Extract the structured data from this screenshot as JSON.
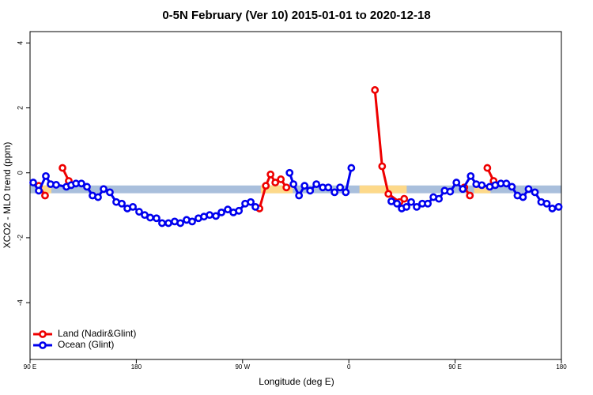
{
  "chart_data": {
    "type": "line",
    "title": "0-5N February (Ver 10)   2015-01-01 to 2020-12-18",
    "xlabel": "Longitude (deg E)",
    "ylabel": "XCO2 - MLO trend (ppm)",
    "xlim": [
      90,
      540
    ],
    "ylim": [
      -5.75,
      4.35
    ],
    "xticks": [
      {
        "value": 90,
        "label": "90 E"
      },
      180,
      {
        "value": 270,
        "label": "90 W"
      },
      {
        "value": 360,
        "label": "0"
      },
      {
        "value": 450,
        "label": "90 E"
      },
      {
        "value": 540,
        "label": "180"
      }
    ],
    "yticks": [
      -4,
      -2,
      0,
      2,
      4
    ],
    "legend": "bottom-left",
    "surface_band": {
      "ylim": [
        -0.63,
        -0.39
      ],
      "ocean_color": "#a9bfdc",
      "land_color": "#fdd98a",
      "land_ranges": [
        [
          94.7,
          108
        ],
        [
          285.5,
          312.5
        ],
        [
          369,
          409
        ],
        [
          466,
          480
        ]
      ]
    },
    "series": [
      {
        "name": "Land (Nadir&Glint)",
        "color": "#ee0000",
        "x": [
          97.4,
          102.7,
          null,
          117.5,
          122.8,
          null,
          284.3,
          289.7,
          293.7,
          297.7,
          302.4,
          307.1,
          null,
          382.1,
          388.2,
          393.5,
          402.9,
          406.9,
          null,
          457.8,
          462.5,
          null,
          477.3,
          482.6
        ],
        "values": [
          -0.4,
          -0.7,
          null,
          0.15,
          -0.25,
          null,
          -1.1,
          -0.4,
          -0.05,
          -0.3,
          -0.2,
          -0.45,
          null,
          2.55,
          0.2,
          -0.65,
          -0.9,
          -0.8,
          null,
          -0.45,
          -0.7,
          null,
          0.15,
          -0.25
        ]
      },
      {
        "name": "Ocean (Glint)",
        "color": "#0000ee",
        "x": [
          92.7,
          97.4,
          103.4,
          107.4,
          112.1,
          120.8,
          124.8,
          128.9,
          133.5,
          138.2,
          142.9,
          147.6,
          152.3,
          157.6,
          163,
          167.7,
          172.4,
          177.1,
          182.4,
          187.1,
          191.8,
          197.1,
          201.8,
          207.2,
          212.5,
          217.3,
          222.6,
          227.3,
          232.6,
          237.3,
          242.1,
          247.4,
          252.1,
          257.5,
          262.2,
          266.9,
          272.2,
          276.9,
          280.9,
          null,
          309.8,
          313.1,
          317.8,
          322.5,
          327.2,
          332.5,
          337.9,
          342.6,
          347.9,
          352.6,
          357.4,
          362.1,
          null,
          396,
          400.8,
          404.8,
          408.8,
          412.8,
          417.5,
          422.2,
          426.9,
          431.6,
          436.3,
          441.1,
          445.8,
          451.1,
          456.5,
          463.2,
          467.9,
          472.6,
          479.3,
          484,
          488.7,
          493.4,
          498.1,
          502.8,
          507.5,
          512.2,
          517.6,
          522.9,
          527.6,
          532.3,
          537.7
        ],
        "values": [
          -0.3,
          -0.55,
          -0.1,
          -0.35,
          -0.37,
          -0.43,
          -0.38,
          -0.33,
          -0.33,
          -0.43,
          -0.7,
          -0.75,
          -0.5,
          -0.6,
          -0.9,
          -0.95,
          -1.1,
          -1.05,
          -1.2,
          -1.3,
          -1.38,
          -1.4,
          -1.55,
          -1.55,
          -1.5,
          -1.55,
          -1.45,
          -1.5,
          -1.4,
          -1.35,
          -1.3,
          -1.33,
          -1.22,
          -1.13,
          -1.22,
          -1.17,
          -0.95,
          -0.9,
          -1.05,
          null,
          0.0,
          -0.35,
          -0.7,
          -0.4,
          -0.55,
          -0.35,
          -0.45,
          -0.45,
          -0.6,
          -0.45,
          -0.6,
          0.15,
          null,
          -0.88,
          -0.95,
          -1.1,
          -1.05,
          -0.9,
          -1.05,
          -0.95,
          -0.95,
          -0.75,
          -0.8,
          -0.55,
          -0.58,
          -0.3,
          -0.5,
          -0.1,
          -0.35,
          -0.38,
          -0.43,
          -0.38,
          -0.33,
          -0.33,
          -0.43,
          -0.7,
          -0.75,
          -0.5,
          -0.6,
          -0.9,
          -0.95,
          -1.1,
          -1.05
        ]
      }
    ]
  }
}
